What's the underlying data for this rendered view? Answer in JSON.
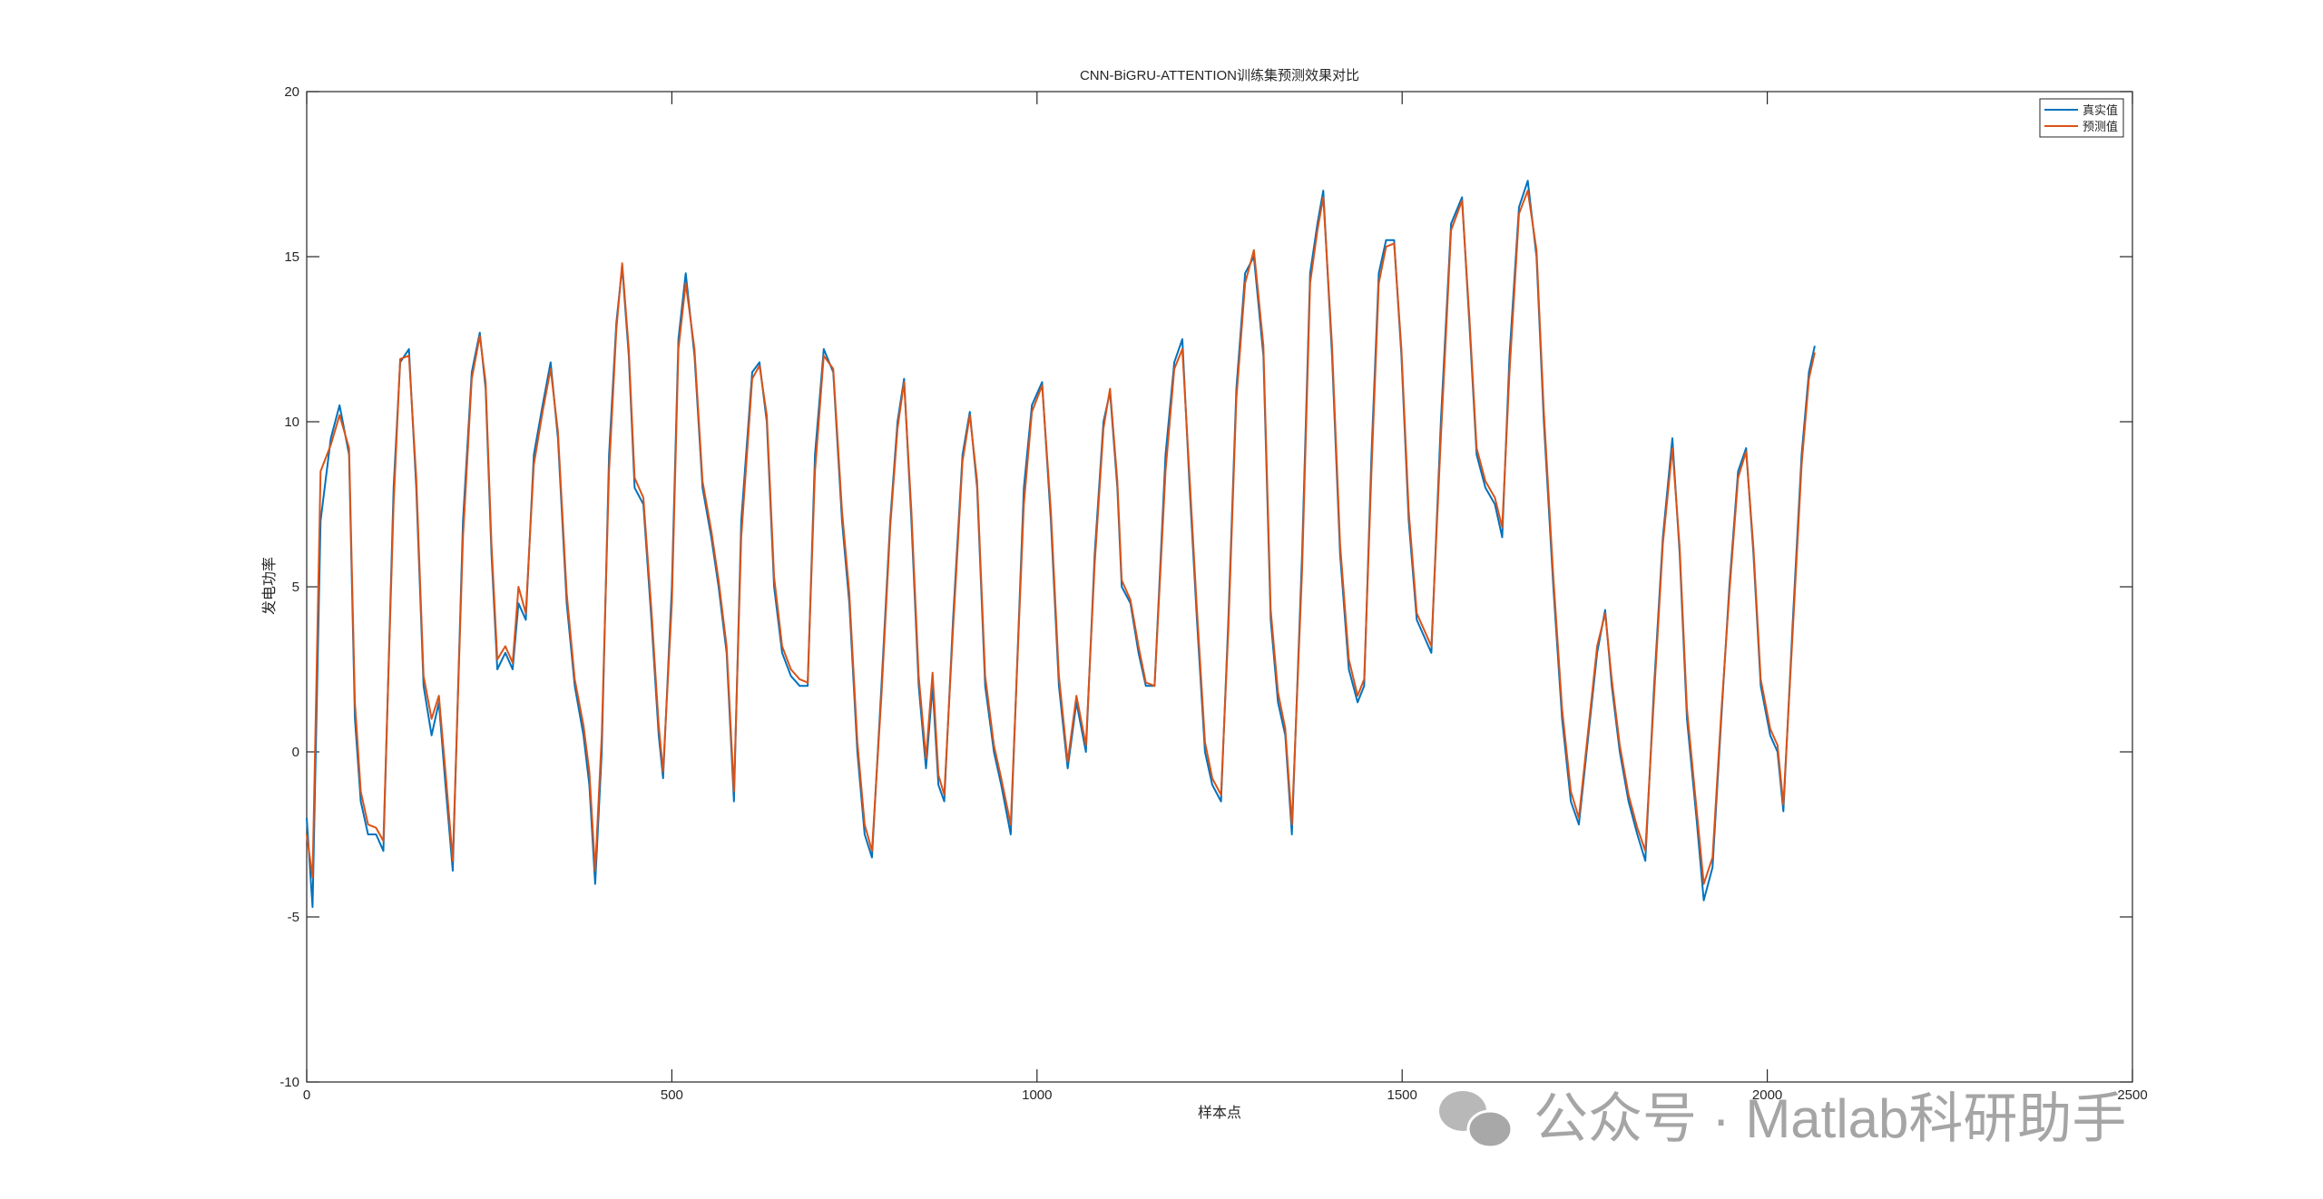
{
  "chart_data": {
    "type": "line",
    "title": "CNN-BiGRU-ATTENTION训练集预测效果对比",
    "x_label": "样本点",
    "y_label": "发电功率",
    "x": [
      0,
      8,
      19,
      33,
      45,
      58,
      66,
      74,
      84,
      95,
      105,
      119,
      128,
      140,
      150,
      160,
      171,
      181,
      190,
      200,
      214,
      226,
      237,
      245,
      253,
      261,
      272,
      282,
      290,
      300,
      311,
      323,
      334,
      344,
      356,
      367,
      379,
      387,
      395,
      404,
      414,
      424,
      432,
      441,
      449,
      461,
      472,
      482,
      488,
      500,
      509,
      519,
      531,
      542,
      554,
      564,
      575,
      585,
      595,
      610,
      620,
      630,
      640,
      651,
      663,
      675,
      686,
      696,
      708,
      721,
      733,
      743,
      754,
      764,
      774,
      787,
      799,
      809,
      818,
      828,
      838,
      848,
      857,
      865,
      873,
      885,
      898,
      908,
      918,
      929,
      941,
      951,
      964,
      982,
      993,
      1007,
      1019,
      1030,
      1042,
      1054,
      1067,
      1079,
      1091,
      1100,
      1110,
      1116,
      1128,
      1139,
      1149,
      1161,
      1176,
      1188,
      1199,
      1209,
      1219,
      1230,
      1240,
      1252,
      1262,
      1273,
      1285,
      1297,
      1310,
      1320,
      1330,
      1340,
      1349,
      1363,
      1374,
      1384,
      1392,
      1404,
      1415,
      1427,
      1439,
      1448,
      1458,
      1468,
      1478,
      1489,
      1499,
      1509,
      1520,
      1530,
      1540,
      1553,
      1567,
      1582,
      1592,
      1602,
      1614,
      1627,
      1637,
      1647,
      1660,
      1672,
      1684,
      1694,
      1707,
      1719,
      1731,
      1742,
      1755,
      1767,
      1778,
      1787,
      1798,
      1810,
      1822,
      1833,
      1845,
      1857,
      1870,
      1880,
      1890,
      1903,
      1913,
      1925,
      1937,
      1948,
      1960,
      1971,
      1981,
      1991,
      2004,
      2014,
      2022,
      2035,
      2047,
      2057,
      2065
    ],
    "series": [
      {
        "name": "真实值",
        "color": "#0072BD",
        "values": [
          -2,
          -4.7,
          7,
          9.5,
          10.5,
          9,
          1,
          -1.5,
          -2.5,
          -2.5,
          -3,
          8,
          11.8,
          12.2,
          8,
          2,
          0.5,
          1.5,
          -1,
          -3.6,
          7,
          11.5,
          12.7,
          11,
          6,
          2.5,
          3,
          2.5,
          4.5,
          4,
          9,
          10.5,
          11.8,
          9.5,
          4.5,
          2,
          0.5,
          -1,
          -4,
          0,
          9,
          13,
          14.7,
          12,
          8,
          7.5,
          4,
          0.5,
          -0.8,
          5,
          12.5,
          14.5,
          12,
          8,
          6.5,
          5,
          3,
          -1.5,
          7,
          11.5,
          11.8,
          10,
          5,
          3,
          2.3,
          2,
          2,
          9,
          12.2,
          11.5,
          7,
          4.5,
          0,
          -2.5,
          -3.2,
          2,
          7,
          10,
          11.3,
          7,
          2,
          -0.5,
          2,
          -1,
          -1.5,
          4,
          9,
          10.3,
          8,
          2,
          0,
          -1,
          -2.5,
          8,
          10.5,
          11.2,
          7,
          2,
          -0.5,
          1.5,
          0,
          6,
          10,
          10.9,
          8,
          5,
          4.5,
          3,
          2,
          2,
          9,
          11.8,
          12.5,
          8,
          4,
          0,
          -1,
          -1.5,
          4,
          11,
          14.5,
          15,
          12,
          4,
          1.5,
          0.5,
          -2.5,
          6,
          14.5,
          16,
          17,
          12,
          6,
          2.5,
          1.5,
          2,
          9,
          14.5,
          15.5,
          15.5,
          12,
          7,
          4,
          3.5,
          3,
          10,
          16,
          16.8,
          13,
          9,
          8,
          7.5,
          6.5,
          12,
          16.5,
          17.3,
          15,
          10,
          5,
          1,
          -1.5,
          -2.2,
          0.5,
          3,
          4.3,
          2,
          0,
          -1.5,
          -2.5,
          -3.3,
          2,
          6.5,
          9.5,
          6,
          1,
          -2,
          -4.5,
          -3.5,
          1,
          5,
          8.5,
          9.2,
          6,
          2,
          0.5,
          0,
          -1.8,
          4,
          9,
          11.5,
          12.3
        ]
      },
      {
        "name": "预测值",
        "color": "#D95319",
        "values": [
          -2.5,
          -3.8,
          8.5,
          9.3,
          10.2,
          9.2,
          1.5,
          -1.2,
          -2.2,
          -2.3,
          -2.7,
          7.5,
          11.9,
          12,
          8.3,
          2.3,
          1,
          1.7,
          -0.6,
          -3.3,
          6.5,
          11.3,
          12.6,
          11.2,
          6.3,
          2.8,
          3.2,
          2.7,
          5,
          4.2,
          8.7,
          10.3,
          11.6,
          9.7,
          4.8,
          2.2,
          0.8,
          -0.6,
          -3.6,
          0.5,
          8.5,
          12.8,
          14.8,
          12.2,
          8.3,
          7.7,
          4.3,
          0.8,
          -0.6,
          4.5,
          12.2,
          14.2,
          12.2,
          8.2,
          6.7,
          5.2,
          3.2,
          -1.2,
          6.5,
          11.3,
          11.7,
          10.2,
          5.3,
          3.2,
          2.5,
          2.2,
          2.1,
          8.5,
          12,
          11.6,
          7.3,
          4.8,
          0.3,
          -2.2,
          -3,
          1.7,
          6.8,
          9.8,
          11.2,
          7.3,
          2.3,
          -0.2,
          2.4,
          -0.7,
          -1.3,
          3.7,
          8.8,
          10.2,
          8.2,
          2.3,
          0.2,
          -0.8,
          -2.2,
          7.5,
          10.3,
          11.1,
          7.3,
          2.3,
          -0.3,
          1.7,
          0.2,
          5.7,
          9.8,
          11,
          8.2,
          5.2,
          4.6,
          3.2,
          2.1,
          2,
          8.5,
          11.6,
          12.2,
          8.3,
          4.3,
          0.3,
          -0.8,
          -1.3,
          3.7,
          10.7,
          14.2,
          15.2,
          12.3,
          4.3,
          1.8,
          0.7,
          -2.2,
          5.5,
          14.2,
          15.8,
          16.8,
          12.3,
          6.3,
          2.8,
          1.7,
          2.2,
          8.5,
          14.2,
          15.3,
          15.4,
          12.2,
          7.3,
          4.2,
          3.7,
          3.2,
          9.5,
          15.8,
          16.7,
          13.2,
          9.2,
          8.2,
          7.7,
          6.8,
          11.5,
          16.3,
          17,
          15.2,
          10.3,
          5.3,
          1.3,
          -1.2,
          -2,
          0.7,
          3.2,
          4.2,
          2.2,
          0.2,
          -1.3,
          -2.3,
          -3,
          1.7,
          6.3,
          9.2,
          6.2,
          1.3,
          -1.7,
          -4,
          -3.2,
          1.2,
          4.8,
          8.3,
          9.1,
          6.2,
          2.2,
          0.7,
          0.2,
          -1.6,
          3.7,
          8.7,
          11.3,
          12.1
        ]
      }
    ],
    "xlim": [
      0,
      2500
    ],
    "xticks": [
      0,
      500,
      1000,
      1500,
      2000,
      2500
    ],
    "ylim": [
      -10,
      20
    ],
    "yticks": [
      -10,
      -5,
      0,
      5,
      10,
      15,
      20
    ],
    "grid": false,
    "legend": "upper-right"
  },
  "watermark": "公众号 · Matlab科研助手"
}
